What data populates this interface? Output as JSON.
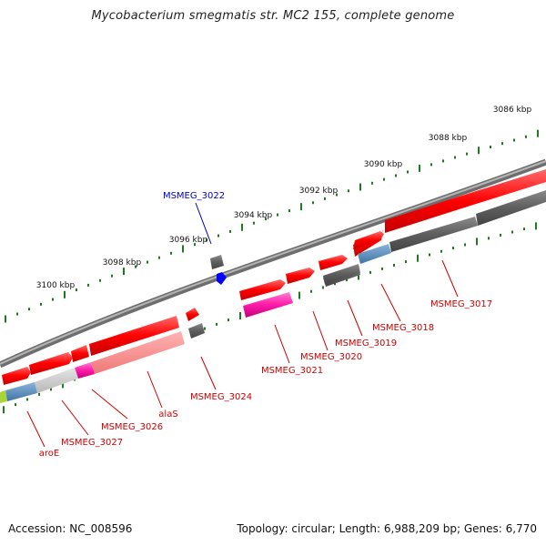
{
  "title": "Mycobacterium smegmatis str. MC2 155, complete genome",
  "footer": {
    "accession": "Accession: NC_008596",
    "topology": "Topology: circular; Length: 6,988,209 bp; Genes: 6,770"
  },
  "colors": {
    "gene": "#ff0000",
    "highlight": "#ff1493",
    "selected": "#0000ff",
    "backbone": "#808080",
    "scale": "#008000",
    "label_red": "#cc0000",
    "label_blue": "#0000cc"
  },
  "scale": {
    "ticks": [
      {
        "label": "3086 kbp"
      },
      {
        "label": "3088 kbp"
      },
      {
        "label": "3090 kbp"
      },
      {
        "label": "3092 kbp"
      },
      {
        "label": "3094 kbp"
      },
      {
        "label": "3096 kbp"
      },
      {
        "label": "3098 kbp"
      },
      {
        "label": "3100 kbp"
      }
    ]
  },
  "genes": [
    {
      "label": "MSMEG_3022",
      "color": "blue"
    },
    {
      "label": "MSMEG_3017",
      "color": "red"
    },
    {
      "label": "MSMEG_3018",
      "color": "red"
    },
    {
      "label": "MSMEG_3019",
      "color": "red"
    },
    {
      "label": "MSMEG_3020",
      "color": "red"
    },
    {
      "label": "MSMEG_3021",
      "color": "red"
    },
    {
      "label": "MSMEG_3024",
      "color": "red"
    },
    {
      "label": "alaS",
      "color": "red"
    },
    {
      "label": "MSMEG_3026",
      "color": "red"
    },
    {
      "label": "MSMEG_3027",
      "color": "red"
    },
    {
      "label": "aroE",
      "color": "red"
    }
  ]
}
